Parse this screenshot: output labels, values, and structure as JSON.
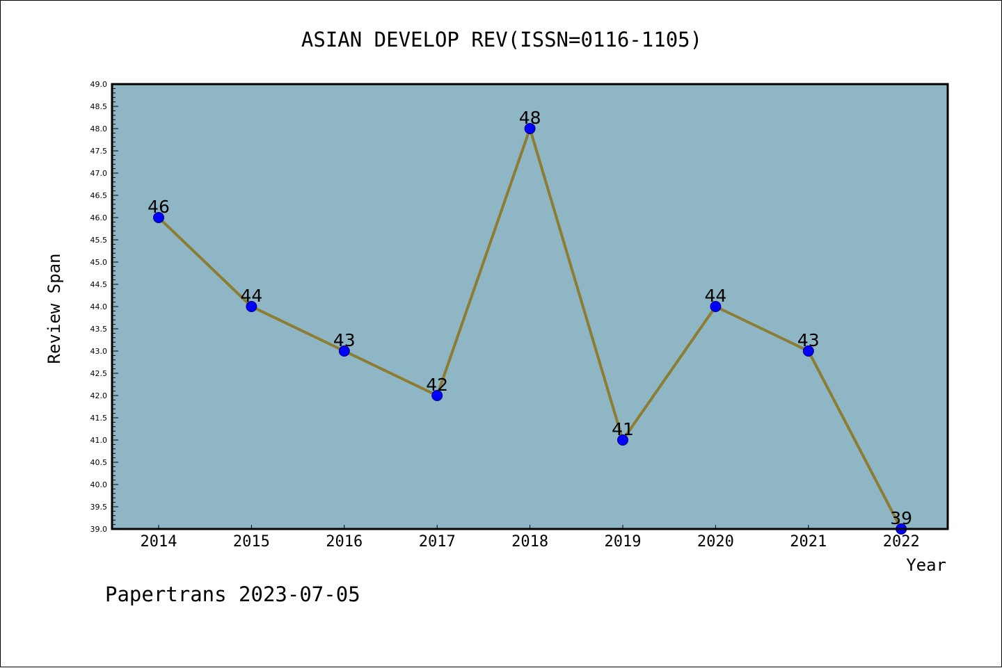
{
  "chart_data": {
    "type": "line",
    "title": "ASIAN DEVELOP REV(ISSN=0116-1105)",
    "xlabel": "Year",
    "ylabel": "Review Span",
    "categories": [
      "2014",
      "2015",
      "2016",
      "2017",
      "2018",
      "2019",
      "2020",
      "2021",
      "2022"
    ],
    "series": [
      {
        "values": [
          46,
          44,
          43,
          42,
          48,
          41,
          44,
          43,
          39
        ]
      }
    ],
    "data_labels": [
      "46",
      "44",
      "43",
      "42",
      "48",
      "41",
      "44",
      "43",
      "39"
    ],
    "ylim": [
      39.0,
      49.0
    ],
    "yticks": [
      "39.0",
      "39.5",
      "40.0",
      "40.5",
      "41.0",
      "41.5",
      "42.0",
      "42.5",
      "43.0",
      "43.5",
      "44.0",
      "44.5",
      "45.0",
      "45.5",
      "46.0",
      "46.5",
      "47.0",
      "47.5",
      "48.0",
      "48.5",
      "49.0"
    ],
    "grid": false,
    "colors": {
      "plot_background": "#8fb6c4",
      "line": "#8b7d33",
      "marker": "#0000ff"
    }
  },
  "footer": "Papertrans 2023-07-05"
}
